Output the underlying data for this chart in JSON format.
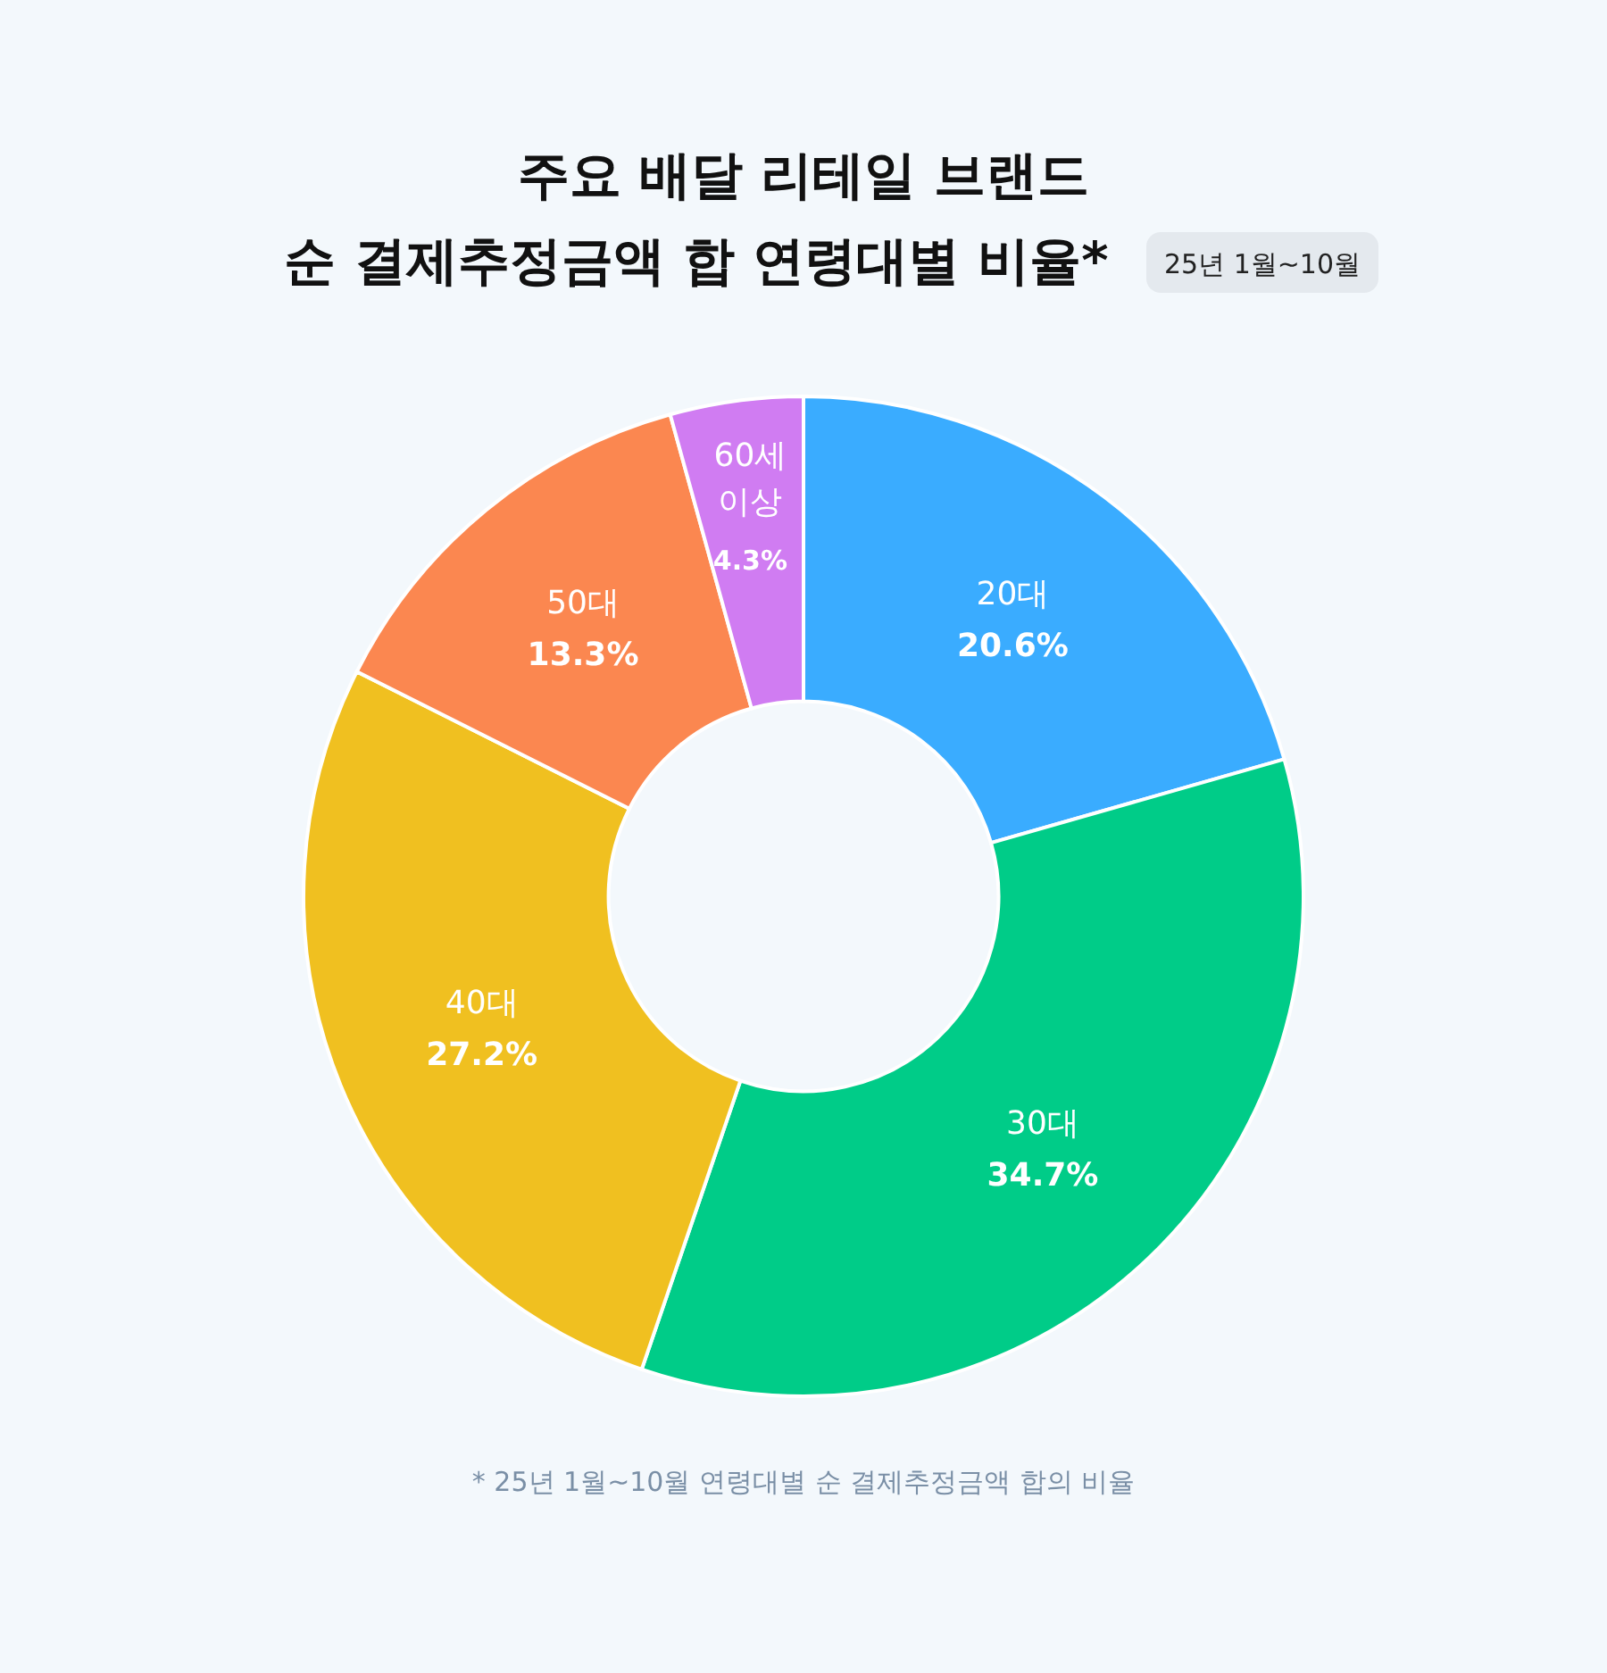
{
  "chart_data": {
    "type": "donut",
    "title": "주요 배달 리테일 브랜드\n순 결제추정금액 합 연령대별 비율*",
    "subtitle": "25년 1월~10월",
    "categories": [
      "20대",
      "30대",
      "40대",
      "50대",
      "60세 이상"
    ],
    "values": [
      20.6,
      34.7,
      27.2,
      13.3,
      4.3
    ],
    "colors": [
      "#3aacff",
      "#00cc88",
      "#f0c020",
      "#fb8750",
      "#d07cf2"
    ],
    "value_labels": [
      "20.6%",
      "34.7%",
      "27.2%",
      "13.3%",
      "4.3%"
    ],
    "annotations": [
      "* 25년 1월~10월 연령대별 순 결제추정금액 합의 비율"
    ]
  }
}
